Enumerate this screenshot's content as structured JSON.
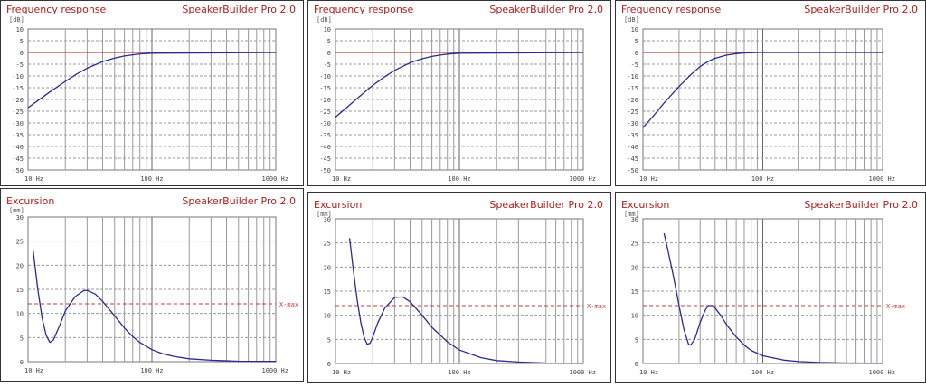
{
  "app_name": "SpeakerBuilder Pro 2.0",
  "colors": {
    "curve": "#2b2b8f",
    "reference": "#c04040",
    "xmax": "#c04040",
    "title": "#b02020",
    "grid": "#999999"
  },
  "chart_data": [
    {
      "id": "fr1",
      "type": "line",
      "title": "Frequency response",
      "app": "SpeakerBuilder Pro 2.0",
      "y_unit": "[dB]",
      "xscale": "log",
      "xlim": [
        10,
        1000
      ],
      "ylim": [
        -50,
        10
      ],
      "x_ticks": [
        "10 Hz",
        "100 Hz",
        "1000 Hz"
      ],
      "y_ticks": [
        "10",
        "5",
        "0",
        "-5",
        "-10",
        "-15",
        "-20",
        "-25",
        "-30",
        "-35",
        "-40",
        "-45",
        "-50"
      ],
      "reference": {
        "y": 0,
        "x_end": 1000
      },
      "series": [
        {
          "x": [
            10,
            12,
            15,
            20,
            25,
            30,
            40,
            50,
            60,
            70,
            80,
            100
          ],
          "y": [
            -23.5,
            -20.5,
            -16.8,
            -12.3,
            -9.0,
            -6.7,
            -3.9,
            -2.4,
            -1.5,
            -1.0,
            -0.6,
            -0.3
          ]
        }
      ]
    },
    {
      "id": "fr2",
      "type": "line",
      "title": "Frequency response",
      "app": "SpeakerBuilder Pro 2.0",
      "y_unit": "[dB]",
      "xscale": "log",
      "xlim": [
        10,
        1000
      ],
      "ylim": [
        -50,
        10
      ],
      "x_ticks": [
        "10 Hz",
        "100 Hz",
        "1000 Hz"
      ],
      "y_ticks": [
        "10",
        "5",
        "0",
        "-5",
        "-10",
        "-15",
        "-20",
        "-25",
        "-30",
        "-35",
        "-40",
        "-45",
        "-50"
      ],
      "reference": {
        "y": 0,
        "x_end": 1000
      },
      "series": [
        {
          "x": [
            10,
            12,
            15,
            20,
            25,
            30,
            40,
            50,
            60,
            70,
            80,
            100
          ],
          "y": [
            -27.5,
            -24.0,
            -19.5,
            -14.0,
            -10.3,
            -7.6,
            -4.4,
            -2.7,
            -1.7,
            -1.1,
            -0.7,
            -0.3
          ]
        }
      ]
    },
    {
      "id": "fr3",
      "type": "line",
      "title": "Frequency response",
      "app": "SpeakerBuilder Pro 2.0",
      "y_unit": "[dB]",
      "xscale": "log",
      "xlim": [
        10,
        1000
      ],
      "ylim": [
        -50,
        10
      ],
      "x_ticks": [
        "10 Hz",
        "100 Hz",
        "1000 Hz"
      ],
      "y_ticks": [
        "10",
        "5",
        "0",
        "-5",
        "-10",
        "-15",
        "-20",
        "-25",
        "-30",
        "-35",
        "-40",
        "-45",
        "-50"
      ],
      "reference": {
        "y": 0,
        "x_end": 1000
      },
      "series": [
        {
          "x": [
            10,
            12,
            15,
            20,
            25,
            30,
            35,
            40,
            50,
            60,
            70,
            80,
            90
          ],
          "y": [
            -32.0,
            -27.5,
            -21.5,
            -14.5,
            -9.5,
            -6.0,
            -3.8,
            -2.5,
            -1.1,
            -0.5,
            -0.2,
            -0.1,
            0.0
          ]
        }
      ]
    },
    {
      "id": "ex1",
      "type": "line",
      "title": "Excursion",
      "app": "SpeakerBuilder Pro 2.0",
      "y_unit": "[mm]",
      "xscale": "log",
      "xlim": [
        10,
        1000
      ],
      "ylim": [
        0,
        30
      ],
      "x_ticks": [
        "10 Hz",
        "100 Hz",
        "1000 Hz"
      ],
      "y_ticks": [
        "30",
        "25",
        "20",
        "15",
        "10",
        "5",
        "0"
      ],
      "xmax": {
        "value": 12,
        "label": "X-max"
      },
      "series": [
        {
          "x": [
            11,
            12,
            13,
            14,
            15,
            16,
            18,
            20,
            24,
            28,
            30,
            35,
            40,
            50,
            60,
            70,
            80,
            100,
            120,
            150,
            200,
            300,
            500,
            1000
          ],
          "y": [
            23.0,
            15.0,
            9.0,
            5.5,
            4.0,
            4.5,
            7.5,
            10.5,
            13.5,
            14.7,
            14.8,
            14.0,
            12.5,
            9.5,
            7.0,
            5.2,
            4.0,
            2.5,
            1.7,
            1.1,
            0.6,
            0.3,
            0.1,
            0.05
          ]
        }
      ]
    },
    {
      "id": "ex2",
      "type": "line",
      "title": "Excursion",
      "app": "SpeakerBuilder Pro 2.0",
      "y_unit": "[mm]",
      "xscale": "log",
      "xlim": [
        10,
        1000
      ],
      "ylim": [
        0,
        30
      ],
      "x_ticks": [
        "10 Hz",
        "100 Hz",
        "1000 Hz"
      ],
      "y_ticks": [
        "30",
        "25",
        "20",
        "15",
        "10",
        "5",
        "0"
      ],
      "xmax": {
        "value": 12,
        "label": "X-max"
      },
      "series": [
        {
          "x": [
            13,
            14,
            15,
            16,
            17,
            18,
            19,
            20,
            22,
            25,
            30,
            35,
            40,
            50,
            60,
            80,
            100,
            150,
            200,
            300,
            500,
            1000
          ],
          "y": [
            26.0,
            19.0,
            13.0,
            8.5,
            5.5,
            4.0,
            4.2,
            5.5,
            8.5,
            11.5,
            13.7,
            13.8,
            12.8,
            10.0,
            7.5,
            4.5,
            2.8,
            1.2,
            0.6,
            0.3,
            0.1,
            0.05
          ]
        }
      ]
    },
    {
      "id": "ex3",
      "type": "line",
      "title": "Excursion",
      "app": "SpeakerBuilder Pro 2.0",
      "y_unit": "[mm]",
      "xscale": "log",
      "xlim": [
        10,
        1000
      ],
      "ylim": [
        0,
        30
      ],
      "x_ticks": [
        "10 Hz",
        "100 Hz",
        "1000 Hz"
      ],
      "y_ticks": [
        "30",
        "25",
        "20",
        "15",
        "10",
        "5",
        "0"
      ],
      "xmax": {
        "value": 12,
        "label": "X-max"
      },
      "series": [
        {
          "x": [
            15,
            16,
            18,
            20,
            22,
            24,
            25,
            27,
            30,
            33,
            35,
            38,
            40,
            45,
            50,
            60,
            70,
            80,
            100,
            150,
            200,
            300,
            500,
            1000
          ],
          "y": [
            27.0,
            24.0,
            18.0,
            12.0,
            7.0,
            4.0,
            3.8,
            5.0,
            8.5,
            11.0,
            12.0,
            12.0,
            11.5,
            9.8,
            8.0,
            5.5,
            3.8,
            2.7,
            1.6,
            0.7,
            0.4,
            0.2,
            0.1,
            0.05
          ]
        }
      ]
    }
  ]
}
